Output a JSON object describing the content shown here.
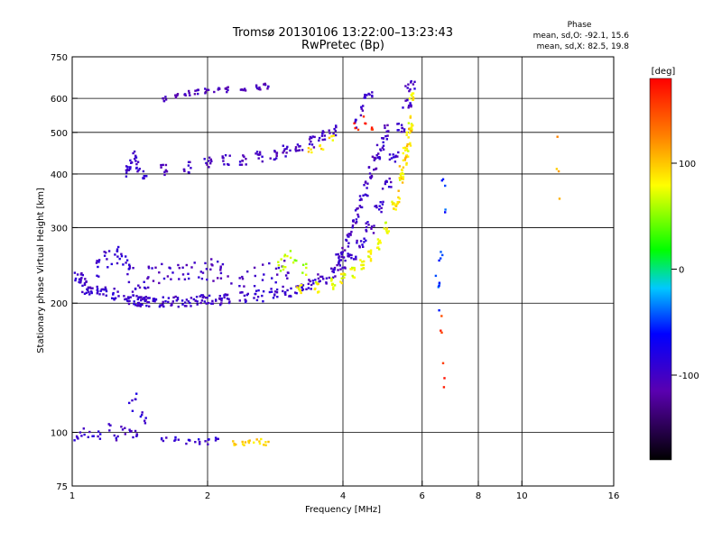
{
  "chart_data": {
    "type": "scatter",
    "title": "Tromsø 20130106 13:22:00–13:23:43",
    "subtitle": "RwPretec (Bp)",
    "xlabel": "Frequency [MHz]",
    "ylabel": "Stationary phase Virtual Height [km]",
    "x_scale": "log",
    "y_scale": "log",
    "xlim": [
      1,
      16
    ],
    "ylim": [
      75,
      750
    ],
    "x_ticks": [
      1,
      2,
      4,
      6,
      8,
      10,
      16
    ],
    "y_ticks": [
      75,
      100,
      200,
      300,
      400,
      500,
      600,
      750
    ],
    "grid": true,
    "stats": {
      "heading": "Phase",
      "line_o": "mean, sd,O: -92.1, 15.6",
      "line_x": "mean, sd,X:  82.5, 19.8"
    },
    "colorbar": {
      "label": "[deg]",
      "range": [
        -180,
        180
      ],
      "ticks": [
        100,
        0,
        -100
      ]
    },
    "series": [
      {
        "traces": [
          {
            "x": [
              1.03,
              1.05,
              1.08,
              1.12,
              1.18,
              1.25,
              1.32,
              1.38,
              1.42,
              1.45,
              1.5,
              1.6,
              1.7,
              1.8,
              1.9,
              2.0,
              2.1,
              2.2,
              2.4,
              2.6,
              2.8,
              3.0,
              3.2,
              3.4,
              3.6,
              3.8,
              4.0,
              4.2,
              4.4,
              4.6,
              4.8,
              5.0,
              5.2,
              5.4,
              5.55,
              5.65
            ],
            "y": [
              230,
              225,
              215,
              212,
              213,
              210,
              205,
              203,
              202,
              202,
              202,
              202,
              202,
              202,
              203,
              203,
              204,
              205,
              207,
              208,
              210,
              213,
              217,
              222,
              228,
              236,
              246,
              258,
              275,
              300,
              335,
              380,
              440,
              510,
              580,
              640
            ],
            "phase": -100,
            "jx": 0.025,
            "jy": 0.03,
            "n": 10
          },
          {
            "x": [
              1.4,
              1.45,
              1.5,
              1.6,
              1.7,
              1.8,
              1.9,
              2.0,
              2.1,
              2.2,
              2.4,
              2.6,
              2.8,
              3.0
            ],
            "y": [
              210,
              220,
              230,
              235,
              238,
              240,
              242,
              240,
              238,
              235,
              232,
              232,
              235,
              238
            ],
            "phase": -105,
            "jx": 0.03,
            "jy": 0.06,
            "n": 6
          },
          {
            "x": [
              1.15,
              1.2,
              1.25,
              1.3,
              1.35
            ],
            "y": [
              240,
              255,
              260,
              250,
              235
            ],
            "phase": -95,
            "jx": 0.02,
            "jy": 0.05,
            "n": 7
          },
          {
            "x": [
              1.32,
              1.35,
              1.38,
              1.4,
              1.45
            ],
            "y": [
              405,
              420,
              440,
              415,
              400
            ],
            "phase": -100,
            "jx": 0.01,
            "jy": 0.03,
            "n": 7
          },
          {
            "x": [
              1.6,
              1.8,
              2.0,
              2.2,
              2.4,
              2.6,
              2.8,
              3.0,
              3.2,
              3.4,
              3.6,
              3.8
            ],
            "y": [
              410,
              415,
              425,
              430,
              433,
              438,
              445,
              452,
              462,
              475,
              490,
              505
            ],
            "phase": -105,
            "jx": 0.02,
            "jy": 0.03,
            "n": 9
          },
          {
            "x": [
              1.6,
              1.7,
              1.8,
              1.9,
              2.0,
              2.1,
              2.2,
              2.4,
              2.6,
              2.7
            ],
            "y": [
              600,
              610,
              615,
              620,
              625,
              628,
              630,
              633,
              638,
              640
            ],
            "phase": -110,
            "jx": 0.015,
            "jy": 0.015,
            "n": 6
          },
          {
            "x": [
              3.9,
              4.0,
              4.1,
              4.2,
              4.3,
              4.4,
              4.5,
              4.6,
              4.7,
              4.8,
              4.9,
              5.0
            ],
            "y": [
              250,
              265,
              280,
              300,
              320,
              345,
              370,
              400,
              425,
              450,
              470,
              500
            ],
            "phase": -105,
            "jx": 0.01,
            "jy": 0.04,
            "n": 8
          },
          {
            "x": [
              4.3,
              4.4,
              4.5,
              4.6
            ],
            "y": [
              520,
              560,
              600,
              620
            ],
            "phase": -100,
            "jx": 0.01,
            "jy": 0.03,
            "n": 5
          },
          {
            "x": [
              1.02,
              1.05,
              1.1,
              1.15,
              1.2,
              1.25,
              1.3,
              1.35,
              1.4
            ],
            "y": [
              97,
              100,
              98,
              99,
              102,
              96,
              101,
              99,
              100
            ],
            "phase": -100,
            "jx": 0.015,
            "jy": 0.025,
            "n": 4
          },
          {
            "x": [
              1.35,
              1.38,
              1.42,
              1.45
            ],
            "y": [
              115,
              120,
              110,
              105
            ],
            "phase": -90,
            "jx": 0.01,
            "jy": 0.04,
            "n": 3
          },
          {
            "x": [
              1.6,
              1.7,
              1.8,
              1.9,
              2.0,
              2.1
            ],
            "y": [
              96,
              96,
              95,
              95,
              95,
              96
            ],
            "phase": -95,
            "jx": 0.015,
            "jy": 0.015,
            "n": 4
          },
          {
            "x": [
              3.2,
              3.5,
              3.8,
              4.0,
              4.2,
              4.4,
              4.6,
              4.8,
              5.0,
              5.2,
              5.4,
              5.55,
              5.65,
              5.7
            ],
            "y": [
              215,
              218,
              222,
              228,
              235,
              245,
              258,
              275,
              300,
              340,
              390,
              450,
              520,
              600
            ],
            "phase": 80,
            "jx": 0.012,
            "jy": 0.03,
            "n": 9
          },
          {
            "x": [
              5.3,
              5.4,
              5.5,
              5.6,
              5.65
            ],
            "y": [
              350,
              400,
              440,
              480,
              520
            ],
            "phase": 95,
            "jx": 0.01,
            "jy": 0.05,
            "n": 8
          },
          {
            "x": [
              2.9,
              3.0,
              3.1,
              3.3
            ],
            "y": [
              245,
              250,
              255,
              240
            ],
            "phase": 60,
            "jx": 0.02,
            "jy": 0.04,
            "n": 5
          },
          {
            "x": [
              3.4,
              3.6,
              3.8
            ],
            "y": [
              460,
              470,
              480
            ],
            "phase": 90,
            "jx": 0.02,
            "jy": 0.03,
            "n": 4
          },
          {
            "x": [
              2.3,
              2.4,
              2.5,
              2.6,
              2.7
            ],
            "y": [
              94,
              94,
              95,
              95,
              94
            ],
            "phase": 95,
            "jx": 0.015,
            "jy": 0.015,
            "n": 4
          },
          {
            "x": [
              4.3,
              4.5,
              4.7
            ],
            "y": [
              520,
              530,
              510
            ],
            "phase": 160,
            "jx": 0.015,
            "jy": 0.03,
            "n": 3
          },
          {
            "x": [
              6.5,
              6.6,
              6.7
            ],
            "y": [
              220,
              250,
              350
            ],
            "phase": -50,
            "jx": 0.01,
            "jy": 0.15,
            "n": 5
          },
          {
            "x": [
              6.6,
              6.7
            ],
            "y": [
              180,
              140
            ],
            "phase": 160,
            "jx": 0.01,
            "jy": 0.1,
            "n": 3
          },
          {
            "x": [
              12.0,
              12.1
            ],
            "y": [
              450,
              380
            ],
            "phase": 110,
            "jx": 0.005,
            "jy": 0.1,
            "n": 2
          }
        ]
      }
    ]
  }
}
